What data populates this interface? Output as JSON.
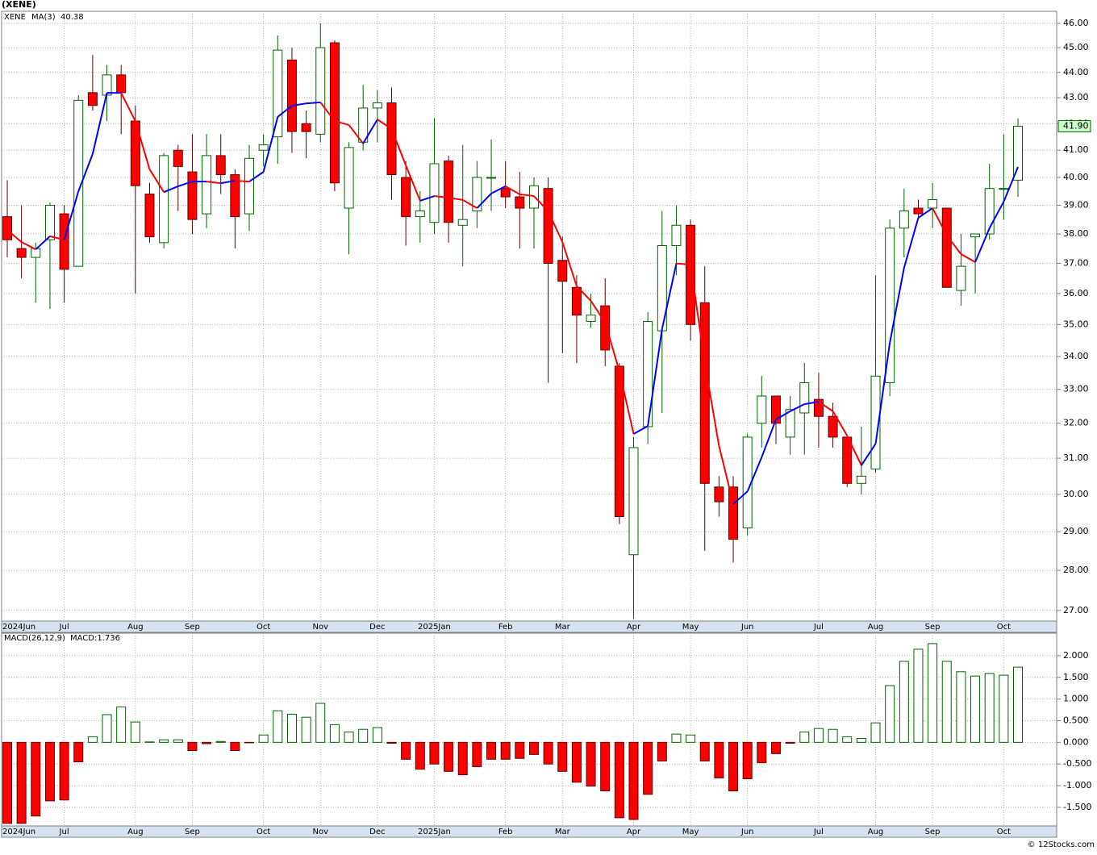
{
  "chart_data": [
    {
      "type": "candlestick",
      "title": "(XENE)",
      "symbol": "XENE",
      "symbol_color": "#008000",
      "categories": [
        "2024Jun",
        null,
        null,
        null,
        "Jul",
        null,
        null,
        null,
        null,
        "Aug",
        null,
        null,
        null,
        "Sep",
        null,
        null,
        null,
        null,
        "Oct",
        null,
        null,
        null,
        "Nov",
        null,
        null,
        null,
        "Dec",
        null,
        null,
        null,
        "2025Jan",
        null,
        null,
        null,
        null,
        "Feb",
        null,
        null,
        null,
        "Mar",
        null,
        null,
        null,
        null,
        "Apr",
        null,
        null,
        null,
        "May",
        null,
        null,
        null,
        "Jun",
        null,
        null,
        null,
        null,
        "Jul",
        null,
        null,
        null,
        "Aug",
        null,
        null,
        null,
        "Sep",
        null,
        null,
        null,
        null,
        "Oct",
        null
      ],
      "open": [
        38.6,
        37.5,
        37.2,
        37.8,
        38.7,
        36.9,
        43.2,
        43.1,
        43.9,
        42.1,
        39.4,
        37.7,
        41.0,
        40.2,
        38.7,
        40.8,
        40.1,
        38.7,
        41.0,
        41.5,
        44.5,
        42.0,
        41.6,
        45.2,
        38.9,
        41.3,
        42.6,
        42.8,
        40.0,
        38.6,
        38.4,
        40.6,
        38.3,
        38.8,
        40.0,
        39.6,
        39.3,
        38.9,
        39.6,
        37.1,
        36.2,
        35.1,
        35.6,
        33.7,
        28.4,
        31.9,
        34.8,
        37.6,
        38.3,
        35.7,
        30.2,
        30.2,
        29.1,
        32.0,
        32.8,
        31.6,
        32.3,
        32.7,
        32.2,
        31.6,
        30.3,
        30.7,
        33.2,
        38.2,
        38.9,
        38.9,
        38.9,
        36.1,
        37.9,
        38.0,
        39.6,
        39.9
      ],
      "high": [
        39.9,
        39.0,
        37.7,
        39.1,
        39.0,
        43.1,
        44.7,
        44.3,
        44.3,
        42.7,
        39.8,
        40.9,
        41.2,
        41.6,
        41.6,
        41.6,
        40.3,
        41.2,
        41.6,
        45.5,
        45.0,
        42.5,
        46.0,
        45.3,
        41.3,
        43.5,
        43.3,
        43.4,
        40.6,
        39.5,
        42.2,
        40.8,
        41.2,
        40.6,
        41.4,
        40.6,
        40.2,
        40.0,
        40.0,
        37.9,
        36.6,
        36.0,
        36.5,
        33.8,
        31.6,
        35.4,
        38.8,
        39.0,
        38.5,
        36.9,
        30.5,
        30.5,
        31.7,
        33.4,
        32.8,
        32.8,
        33.8,
        33.5,
        32.6,
        31.6,
        31.9,
        36.6,
        38.5,
        39.6,
        39.2,
        39.8,
        38.9,
        38.0,
        38.0,
        40.5,
        41.6,
        42.2
      ],
      "low": [
        37.2,
        36.5,
        35.7,
        35.5,
        35.7,
        36.9,
        42.5,
        42.1,
        41.6,
        36.0,
        37.7,
        37.5,
        38.8,
        38.0,
        38.2,
        39.4,
        37.5,
        38.1,
        40.4,
        40.5,
        40.9,
        40.7,
        41.3,
        39.5,
        37.3,
        41.0,
        41.3,
        39.2,
        37.6,
        37.7,
        38.0,
        37.7,
        36.9,
        38.2,
        38.8,
        38.9,
        37.5,
        37.5,
        33.2,
        34.1,
        33.8,
        34.9,
        33.7,
        29.2,
        26.8,
        31.4,
        32.3,
        36.6,
        34.5,
        28.5,
        29.4,
        28.2,
        28.9,
        31.3,
        31.4,
        31.1,
        31.1,
        31.3,
        31.3,
        30.2,
        30.0,
        30.6,
        32.8,
        37.2,
        38.5,
        38.2,
        36.2,
        35.6,
        36.0,
        37.8,
        38.5,
        39.3
      ],
      "close": [
        37.8,
        37.2,
        37.5,
        39.0,
        36.8,
        42.9,
        42.7,
        43.9,
        43.2,
        39.7,
        37.9,
        40.8,
        40.4,
        38.5,
        40.8,
        40.1,
        38.6,
        40.7,
        41.2,
        44.9,
        41.7,
        41.7,
        45.0,
        39.8,
        41.1,
        42.6,
        42.8,
        40.1,
        38.6,
        38.8,
        40.5,
        38.4,
        38.5,
        40.0,
        40.0,
        39.3,
        38.9,
        39.7,
        37.0,
        36.4,
        35.3,
        35.3,
        34.2,
        29.4,
        31.3,
        35.1,
        37.6,
        38.3,
        35.0,
        30.3,
        29.8,
        28.8,
        31.6,
        32.8,
        32.0,
        32.4,
        33.2,
        32.2,
        31.6,
        30.3,
        30.5,
        33.4,
        38.2,
        38.8,
        38.7,
        39.2,
        36.2,
        36.9,
        38.0,
        39.6,
        39.6,
        41.9
      ],
      "up_color": "#006400",
      "down_color": "#ff0000",
      "ma": {
        "name": "MA(3)",
        "name_color": "#0000ff",
        "up_color": "#0000ff",
        "down_color": "#ff0000",
        "values": [
          38.14,
          37.72,
          37.47,
          37.92,
          37.8,
          39.5,
          40.86,
          43.19,
          43.19,
          42.1,
          40.29,
          39.47,
          39.68,
          39.85,
          39.85,
          39.79,
          39.88,
          39.85,
          40.2,
          42.26,
          42.69,
          42.78,
          42.82,
          42.1,
          41.95,
          41.25,
          42.16,
          41.8,
          40.44,
          39.16,
          39.33,
          39.27,
          39.19,
          38.9,
          39.42,
          39.68,
          39.39,
          39.33,
          38.79,
          37.72,
          36.24,
          35.76,
          35.06,
          33.55,
          31.69,
          31.92,
          34.86,
          36.99,
          36.96,
          33.8,
          31.35,
          29.74,
          30.08,
          31.03,
          32.11,
          32.35,
          32.56,
          32.63,
          32.35,
          31.64,
          30.8,
          31.41,
          34.43,
          36.85,
          38.56,
          38.9,
          37.95,
          37.31,
          37.04,
          38.2,
          39.13,
          40.38
        ]
      },
      "last_price_label": "41.90",
      "ylim": [
        26.74,
        46.51
      ],
      "log_scale": true,
      "grid": true,
      "yticks": [
        {
          "value": 46,
          "label": "46.00"
        },
        {
          "value": 45,
          "label": "45.00"
        },
        {
          "value": 44,
          "label": "44.00"
        },
        {
          "value": 43,
          "label": "43.00"
        },
        {
          "value": 42,
          "label": "42.00"
        },
        {
          "value": 41,
          "label": "41.00"
        },
        {
          "value": 40,
          "label": "40.00"
        },
        {
          "value": 39,
          "label": "39.00"
        },
        {
          "value": 38,
          "label": "38.00"
        },
        {
          "value": 37,
          "label": "37.00"
        },
        {
          "value": 36,
          "label": "36.00"
        },
        {
          "value": 35,
          "label": "35.00"
        },
        {
          "value": 34,
          "label": "34.00"
        },
        {
          "value": 33,
          "label": "33.00"
        },
        {
          "value": 32,
          "label": "32.00"
        },
        {
          "value": 31,
          "label": "31.00"
        },
        {
          "value": 30,
          "label": "30.00"
        },
        {
          "value": 29,
          "label": "29.00"
        },
        {
          "value": 28,
          "label": "28.00"
        },
        {
          "value": 27,
          "label": "27.00"
        }
      ]
    },
    {
      "type": "bar",
      "title": "MACD(26,12,9)",
      "value_label": "MACD:1.736",
      "value_label_color": "#0000ff",
      "values": [
        -1.87,
        -1.87,
        -1.7,
        -1.35,
        -1.33,
        -0.45,
        0.13,
        0.64,
        0.82,
        0.47,
        0.01,
        0.06,
        0.06,
        -0.19,
        -0.03,
        0.02,
        -0.19,
        -0.01,
        0.17,
        0.73,
        0.65,
        0.58,
        0.9,
        0.41,
        0.24,
        0.3,
        0.34,
        -0.02,
        -0.39,
        -0.62,
        -0.5,
        -0.67,
        -0.75,
        -0.56,
        -0.39,
        -0.39,
        -0.37,
        -0.28,
        -0.5,
        -0.67,
        -0.92,
        -1.01,
        -1.12,
        -1.74,
        -1.78,
        -1.2,
        -0.43,
        0.19,
        0.17,
        -0.43,
        -0.82,
        -1.12,
        -0.84,
        -0.47,
        -0.26,
        -0.02,
        0.24,
        0.32,
        0.3,
        0.13,
        0.09,
        0.45,
        1.31,
        1.87,
        2.15,
        2.28,
        1.87,
        1.63,
        1.53,
        1.59,
        1.55,
        1.736
      ],
      "positive_color": "#006400",
      "negative_color": "#ff0000",
      "ylim": [
        -1.93,
        2.52
      ],
      "grid": true,
      "yticks": [
        {
          "value": 2,
          "label": "2.000"
        },
        {
          "value": 1.5,
          "label": "1.500"
        },
        {
          "value": 1,
          "label": "1.000"
        },
        {
          "value": 0.5,
          "label": "0.500"
        },
        {
          "value": 0,
          "label": "0.000"
        },
        {
          "value": -0.5,
          "label": "-0.500"
        },
        {
          "value": -1,
          "label": "-1.000"
        },
        {
          "value": -1.5,
          "label": "-1.500"
        }
      ]
    }
  ],
  "footer": "© 12Stocks.com"
}
